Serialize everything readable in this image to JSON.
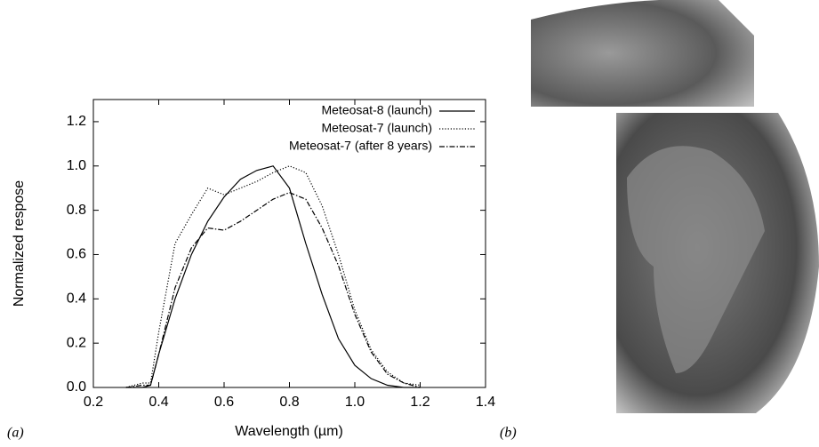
{
  "chart_data": {
    "type": "line",
    "x_label": "Wavelength (µm)",
    "y_label": "Normalized respose",
    "panel_labels": [
      "(a)",
      "(b)"
    ],
    "x": [
      0.3,
      0.35,
      0.375,
      0.4,
      0.45,
      0.5,
      0.55,
      0.6,
      0.65,
      0.7,
      0.75,
      0.8,
      0.85,
      0.9,
      0.95,
      1.0,
      1.05,
      1.1,
      1.15,
      1.2
    ],
    "series": [
      {
        "name": "Meteosat-8 (launch)",
        "color": "#000000",
        "style": "solid",
        "values": [
          0,
          0,
          0.01,
          0.15,
          0.4,
          0.6,
          0.75,
          0.86,
          0.94,
          0.98,
          1.0,
          0.9,
          0.65,
          0.42,
          0.22,
          0.1,
          0.04,
          0.01,
          0,
          0
        ]
      },
      {
        "name": "Meteosat-7 (launch)",
        "color": "#000000",
        "style": "dotted",
        "values": [
          0,
          0.02,
          0.02,
          0.25,
          0.65,
          0.78,
          0.9,
          0.87,
          0.9,
          0.93,
          0.97,
          1.0,
          0.97,
          0.82,
          0.6,
          0.35,
          0.17,
          0.07,
          0.02,
          0.01
        ]
      },
      {
        "name": "Meteosat-7 (after 8 years)",
        "color": "#000000",
        "style": "dashdot",
        "values": [
          0,
          0.01,
          0.01,
          0.15,
          0.45,
          0.63,
          0.72,
          0.71,
          0.75,
          0.8,
          0.85,
          0.88,
          0.85,
          0.72,
          0.55,
          0.33,
          0.16,
          0.06,
          0.02,
          0
        ]
      }
    ],
    "xlim": [
      0.2,
      1.4
    ],
    "xticks": [
      0.2,
      0.4,
      0.6,
      0.8,
      {
        "value": 1,
        "label": "1.0"
      },
      1.2,
      1.4
    ],
    "ylim": [
      0,
      1.3
    ],
    "yticks": [
      {
        "value": 0,
        "label": "0.0"
      },
      0.2,
      0.4,
      0.6,
      0.8,
      {
        "value": 1,
        "label": "1.0"
      },
      1.2
    ],
    "legend": "upper-right"
  }
}
